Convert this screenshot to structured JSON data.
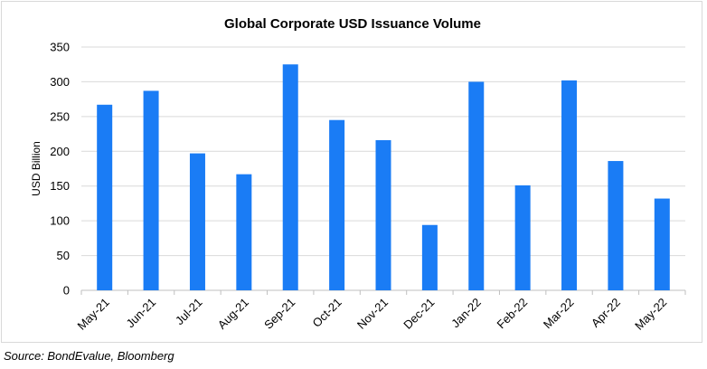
{
  "chart_data": {
    "type": "bar",
    "title": "Global Corporate USD Issuance Volume",
    "xlabel": "",
    "ylabel": "USD Billion",
    "categories": [
      "May-21",
      "Jun-21",
      "Jul-21",
      "Aug-21",
      "Sep-21",
      "Oct-21",
      "Nov-21",
      "Dec-21",
      "Jan-22",
      "Feb-22",
      "Mar-22",
      "Apr-22",
      "May-22"
    ],
    "values": [
      267,
      287,
      197,
      167,
      325,
      245,
      216,
      94,
      300,
      151,
      302,
      186,
      132
    ],
    "ylim": [
      0,
      350
    ],
    "yticks": [
      0,
      50,
      100,
      150,
      200,
      250,
      300,
      350
    ],
    "grid": true,
    "legend": "none",
    "bar_color": "#1a7cf5"
  },
  "source": "Source: BondEvalue, Bloomberg"
}
